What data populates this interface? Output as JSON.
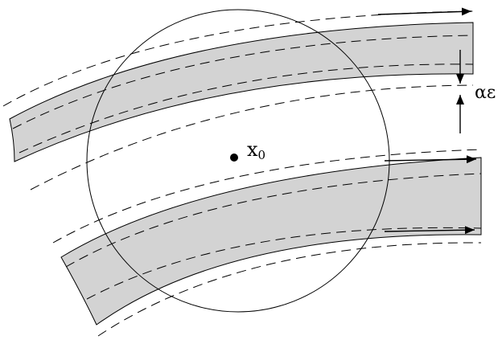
{
  "labels": {
    "point": "x",
    "point_subscript": "0",
    "gap": "αε"
  }
}
